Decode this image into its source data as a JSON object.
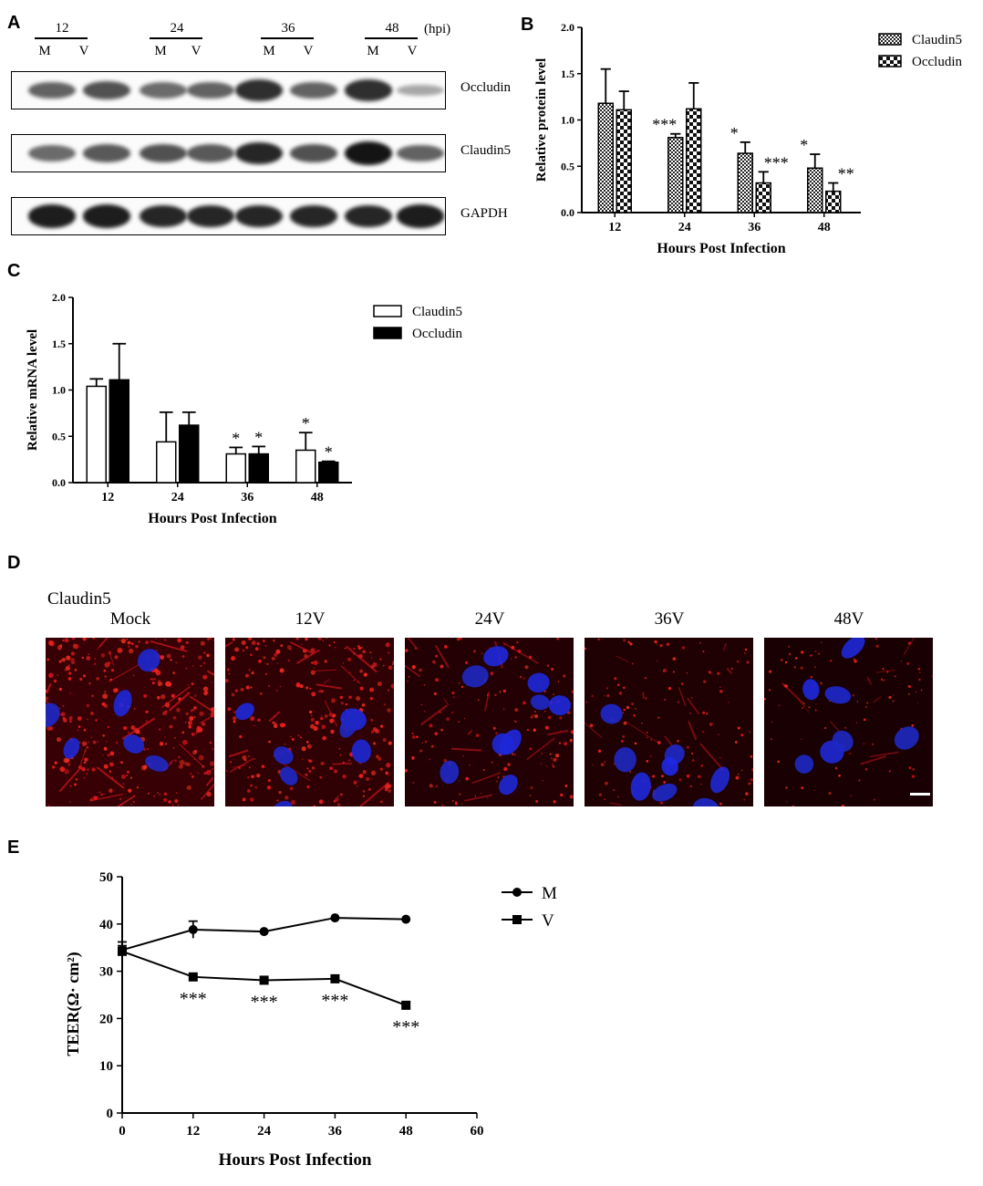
{
  "panels": {
    "A": "A",
    "B": "B",
    "C": "C",
    "D": "D",
    "E": "E"
  },
  "western_blot": {
    "timepoints": [
      "12",
      "24",
      "36",
      "48"
    ],
    "hpi_label": "(hpi)",
    "lanes": [
      "M",
      "V",
      "M",
      "V",
      "M",
      "V",
      "M",
      "V"
    ],
    "rows": [
      {
        "label": "Occludin",
        "intensities": [
          0.55,
          0.65,
          0.5,
          0.55,
          0.85,
          0.55,
          0.85,
          0.15
        ]
      },
      {
        "label": "Claudin5",
        "intensities": [
          0.5,
          0.6,
          0.65,
          0.6,
          0.9,
          0.65,
          1.0,
          0.55
        ]
      },
      {
        "label": "GAPDH",
        "intensities": [
          0.95,
          0.95,
          0.9,
          0.9,
          0.9,
          0.9,
          0.9,
          0.95
        ]
      }
    ]
  },
  "chart_data": [
    {
      "panel": "B",
      "type": "bar",
      "categories": [
        "12",
        "24",
        "36",
        "48"
      ],
      "series": [
        {
          "name": "Claudin5",
          "values": [
            1.18,
            0.81,
            0.64,
            0.48
          ],
          "errors": [
            0.37,
            0.04,
            0.12,
            0.15
          ],
          "sig": [
            "",
            "***",
            "*",
            "*"
          ],
          "fill": "checker-fine"
        },
        {
          "name": "Occludin",
          "values": [
            1.11,
            1.12,
            0.32,
            0.23
          ],
          "errors": [
            0.2,
            0.28,
            0.12,
            0.09
          ],
          "sig": [
            "",
            "",
            "***",
            "**"
          ],
          "fill": "checker-coarse"
        }
      ],
      "yticks": [
        "0.0",
        "0.5",
        "1.0",
        "1.5",
        "2.0"
      ],
      "ylim": [
        0,
        2
      ],
      "xlabel": "Hours Post Infection",
      "ylabel": "Relative protein level",
      "legend": "top-right"
    },
    {
      "panel": "C",
      "type": "bar",
      "categories": [
        "12",
        "24",
        "36",
        "48"
      ],
      "series": [
        {
          "name": "Claudin5",
          "values": [
            1.04,
            0.44,
            0.31,
            0.35
          ],
          "errors": [
            0.08,
            0.32,
            0.07,
            0.19
          ],
          "sig": [
            "",
            "",
            "*",
            "*"
          ],
          "fill": "#ffffff"
        },
        {
          "name": "Occludin",
          "values": [
            1.11,
            0.62,
            0.31,
            0.22
          ],
          "errors": [
            0.39,
            0.14,
            0.08,
            0.01
          ],
          "sig": [
            "",
            "",
            "*",
            "*"
          ],
          "fill": "#000000"
        }
      ],
      "yticks": [
        "0.0",
        "0.5",
        "1.0",
        "1.5",
        "2.0"
      ],
      "ylim": [
        0,
        2
      ],
      "xlabel": "Hours Post Infection",
      "ylabel": "Relative mRNA level",
      "legend": "top-right"
    },
    {
      "panel": "E",
      "type": "line",
      "x": [
        0,
        12,
        24,
        36,
        48
      ],
      "series": [
        {
          "name": "M",
          "marker": "circle",
          "values": [
            34.5,
            38.8,
            38.4,
            41.3,
            41.0
          ],
          "errors": [
            1.7,
            1.8,
            0.3,
            0.3,
            0.3
          ],
          "sig": [
            "",
            "",
            "",
            "",
            ""
          ]
        },
        {
          "name": "V",
          "marker": "square",
          "values": [
            34.2,
            28.8,
            28.1,
            28.4,
            22.8
          ],
          "errors": [
            1.2,
            0.3,
            0.3,
            0.3,
            0.3
          ],
          "sig": [
            "",
            "***",
            "***",
            "***",
            "***"
          ]
        }
      ],
      "xticks": [
        "0",
        "12",
        "24",
        "36",
        "48",
        "60"
      ],
      "yticks": [
        "0",
        "10",
        "20",
        "30",
        "40",
        "50"
      ],
      "xlim": [
        0,
        60
      ],
      "ylim": [
        0,
        50
      ],
      "xlabel": "Hours Post Infection",
      "ylabel": "TEER(Ω· cm²)",
      "legend": "top-right"
    }
  ],
  "microscopy": {
    "stain_label": "Claudin5",
    "panels": [
      {
        "label": "Mock",
        "red_density": 1.0
      },
      {
        "label": "12V",
        "red_density": 0.8
      },
      {
        "label": "24V",
        "red_density": 0.45
      },
      {
        "label": "36V",
        "red_density": 0.35
      },
      {
        "label": "48V",
        "red_density": 0.2
      }
    ]
  }
}
